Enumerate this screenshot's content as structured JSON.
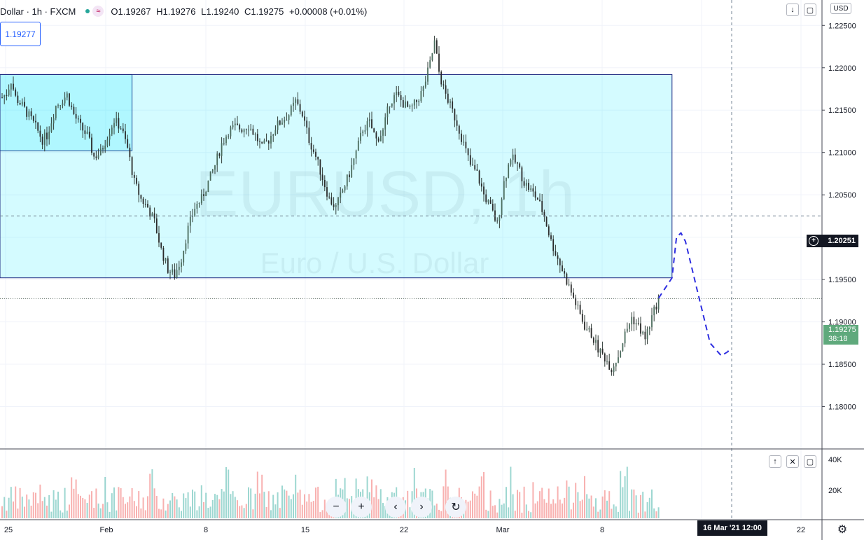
{
  "header": {
    "symbol": "Dollar · 1h · FXCM",
    "indicator_icon": "≈",
    "ohlc": {
      "open": "O1.19267",
      "high": "H1.19276",
      "low": "L1.19240",
      "close": "C1.19275",
      "change": "+0.00008 (+0.01%)"
    }
  },
  "price_box": "1.19277",
  "currency": "USD",
  "watermark": {
    "title": "EURUSD, 1h",
    "subtitle": "Euro / U.S. Dollar"
  },
  "crosshair": {
    "price": "1.20251",
    "time": "16 Mar '21   12:00"
  },
  "last_price": {
    "value": "1.19275",
    "countdown": "38:18"
  },
  "toolbar_icons": {
    "down": "↓",
    "fullscreen": "▢",
    "up": "↑",
    "close": "✕"
  },
  "nav_buttons": {
    "zoom_out": "−",
    "zoom_in": "+",
    "prev": "‹",
    "next": "›",
    "reset": "↻"
  },
  "colors": {
    "up": "#26a69a",
    "down": "#ef5350",
    "zone": "#00e5ff",
    "zone_border": "#1a237e",
    "projection": "#2d2de0"
  },
  "chart_data": {
    "type": "candlestick",
    "symbol": "EURUSD",
    "interval": "1h",
    "price_axis": {
      "ticks": [
        "1.22500",
        "1.22000",
        "1.21500",
        "1.21000",
        "1.20500",
        "1.20000",
        "1.19500",
        "1.19000",
        "1.18500",
        "1.18000"
      ],
      "min": 1.175,
      "max": 1.228
    },
    "volume_axis": {
      "ticks": [
        "40K",
        "20K"
      ]
    },
    "time_labels": [
      "25",
      "Feb",
      "8",
      "15",
      "22",
      "Mar",
      "8",
      "22"
    ],
    "price_path": [
      [
        0,
        1.2165
      ],
      [
        2,
        1.217
      ],
      [
        4,
        1.2185
      ],
      [
        6,
        1.2165
      ],
      [
        9,
        1.2155
      ],
      [
        12,
        1.2143
      ],
      [
        15,
        1.213
      ],
      [
        18,
        1.2115
      ],
      [
        20,
        1.212
      ],
      [
        24,
        1.2155
      ],
      [
        26,
        1.216
      ],
      [
        29,
        1.2168
      ],
      [
        32,
        1.2145
      ],
      [
        35,
        1.213
      ],
      [
        38,
        1.212
      ],
      [
        41,
        1.2095
      ],
      [
        44,
        1.21
      ],
      [
        47,
        1.212
      ],
      [
        50,
        1.2138
      ],
      [
        53,
        1.213
      ],
      [
        56,
        1.2105
      ],
      [
        59,
        1.2065
      ],
      [
        62,
        1.2045
      ],
      [
        65,
        1.2035
      ],
      [
        68,
        1.2018
      ],
      [
        71,
        1.1985
      ],
      [
        74,
        1.1962
      ],
      [
        77,
        1.1955
      ],
      [
        80,
        1.1975
      ],
      [
        83,
        1.201
      ],
      [
        86,
        1.2035
      ],
      [
        89,
        1.2045
      ],
      [
        92,
        1.2065
      ],
      [
        95,
        1.2085
      ],
      [
        98,
        1.211
      ],
      [
        101,
        1.2125
      ],
      [
        104,
        1.213
      ],
      [
        107,
        1.2128
      ],
      [
        110,
        1.2132
      ],
      [
        113,
        1.212
      ],
      [
        116,
        1.2105
      ],
      [
        119,
        1.2115
      ],
      [
        122,
        1.213
      ],
      [
        125,
        1.2138
      ],
      [
        128,
        1.2145
      ],
      [
        131,
        1.216
      ],
      [
        134,
        1.2145
      ],
      [
        137,
        1.2115
      ],
      [
        140,
        1.2095
      ],
      [
        143,
        1.207
      ],
      [
        146,
        1.2045
      ],
      [
        149,
        1.2035
      ],
      [
        152,
        1.2055
      ],
      [
        155,
        1.2075
      ],
      [
        158,
        1.21
      ],
      [
        161,
        1.2128
      ],
      [
        164,
        1.2135
      ],
      [
        167,
        1.2115
      ],
      [
        170,
        1.2125
      ],
      [
        173,
        1.216
      ],
      [
        176,
        1.2168
      ],
      [
        179,
        1.2158
      ],
      [
        182,
        1.215
      ],
      [
        185,
        1.216
      ],
      [
        188,
        1.2175
      ],
      [
        191,
        1.2205
      ],
      [
        193,
        1.223
      ],
      [
        195,
        1.2195
      ],
      [
        197,
        1.2175
      ],
      [
        200,
        1.2155
      ],
      [
        203,
        1.2135
      ],
      [
        206,
        1.211
      ],
      [
        209,
        1.2085
      ],
      [
        212,
        1.2075
      ],
      [
        215,
        1.205
      ],
      [
        218,
        1.2035
      ],
      [
        221,
        1.2015
      ],
      [
        224,
        1.2065
      ],
      [
        227,
        1.2095
      ],
      [
        230,
        1.2085
      ],
      [
        233,
        1.2065
      ],
      [
        236,
        1.2055
      ],
      [
        239,
        1.2045
      ],
      [
        242,
        1.2025
      ],
      [
        245,
        1.1995
      ],
      [
        248,
        1.1975
      ],
      [
        251,
        1.1955
      ],
      [
        254,
        1.1935
      ],
      [
        257,
        1.1915
      ],
      [
        260,
        1.1895
      ],
      [
        263,
        1.1885
      ],
      [
        266,
        1.1868
      ],
      [
        269,
        1.1858
      ],
      [
        272,
        1.1845
      ],
      [
        275,
        1.186
      ],
      [
        278,
        1.1885
      ],
      [
        281,
        1.1905
      ],
      [
        284,
        1.1895
      ],
      [
        287,
        1.188
      ],
      [
        290,
        1.1905
      ],
      [
        293,
        1.1928
      ]
    ],
    "zones": [
      {
        "x1": 0,
        "x2": 58,
        "top": 1.2192,
        "bottom": 1.2102
      },
      {
        "x1": 0,
        "x2": 299,
        "top": 1.2192,
        "bottom": 1.1952
      }
    ],
    "projection": [
      [
        293,
        1.1928
      ],
      [
        299,
        1.1952
      ],
      [
        301,
        1.2
      ],
      [
        303,
        1.2005
      ],
      [
        305,
        1.1995
      ],
      [
        310,
        1.194
      ],
      [
        316,
        1.1875
      ],
      [
        321,
        1.186
      ],
      [
        324,
        1.1865
      ],
      [
        325,
        1.187
      ]
    ],
    "crosshair_price": 1.20251,
    "last_price": 1.19275
  }
}
